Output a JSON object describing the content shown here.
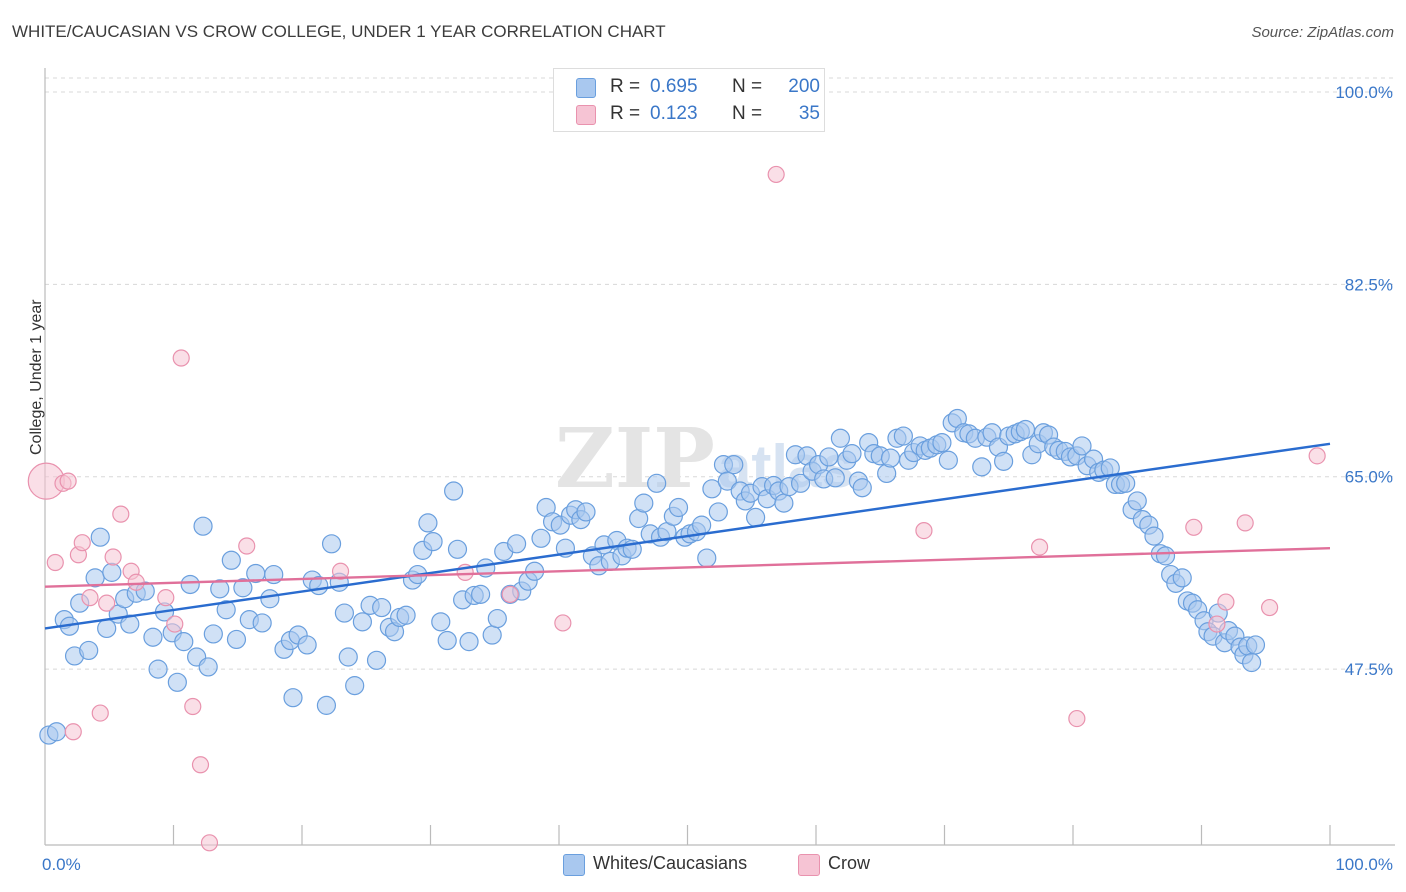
{
  "title": "WHITE/CAUCASIAN VS CROW COLLEGE, UNDER 1 YEAR CORRELATION CHART",
  "source": "Source: ZipAtlas.com",
  "colors": {
    "blue_fill": "#a9c8ef",
    "blue_stroke": "#6a9fde",
    "blue_line": "#2a6ccf",
    "pink_fill": "#f6c4d4",
    "pink_stroke": "#e992ae",
    "pink_line": "#e0709a",
    "tick_text": "#3a77c8",
    "grid": "#d8d8d8"
  },
  "legend": {
    "rows": [
      {
        "series": "Whites/Caucasians",
        "r_label": "R =",
        "r_value": "0.695",
        "n_label": "N =",
        "n_value": "200"
      },
      {
        "series": "Crow",
        "r_label": "R =",
        "r_value": "0.123",
        "n_label": "N =",
        "n_value": "35"
      }
    ]
  },
  "bottom_legend": [
    "Whites/Caucasians",
    "Crow"
  ],
  "chart_data": {
    "type": "scatter",
    "title": "WHITE/CAUCASIAN VS CROW COLLEGE, UNDER 1 YEAR CORRELATION CHART",
    "xlabel": "",
    "ylabel": "College, Under 1 year",
    "xlim": [
      0,
      100
    ],
    "ylim": [
      31.5,
      102
    ],
    "x_tick_labels": [
      {
        "value": 0,
        "label": "0.0%"
      },
      {
        "value": 100,
        "label": "100.0%"
      }
    ],
    "y_ticks": [
      {
        "value": 100,
        "label": "100.0%"
      },
      {
        "value": 82.5,
        "label": "82.5%"
      },
      {
        "value": 65,
        "label": "65.0%"
      },
      {
        "value": 47.5,
        "label": "47.5%"
      }
    ],
    "x_minor_ticks": [
      10,
      20,
      30,
      40,
      50,
      60,
      70,
      80,
      90,
      100
    ],
    "grid": true,
    "watermark": "ZIPatlas",
    "series": [
      {
        "name": "Whites/Caucasians",
        "r": 0.695,
        "n": 200,
        "trend": {
          "x": [
            0,
            100
          ],
          "y": [
            51.2,
            68.0
          ]
        },
        "points": [
          [
            0.3,
            41.5
          ],
          [
            0.9,
            41.8
          ],
          [
            1.5,
            52.0
          ],
          [
            1.9,
            51.4
          ],
          [
            2.3,
            48.7
          ],
          [
            2.7,
            53.5
          ],
          [
            3.4,
            49.2
          ],
          [
            3.9,
            55.8
          ],
          [
            4.3,
            59.5
          ],
          [
            4.8,
            51.2
          ],
          [
            5.2,
            56.3
          ],
          [
            5.7,
            52.5
          ],
          [
            6.2,
            53.9
          ],
          [
            6.6,
            51.6
          ],
          [
            7.1,
            54.4
          ],
          [
            7.8,
            54.6
          ],
          [
            8.4,
            50.4
          ],
          [
            8.8,
            47.5
          ],
          [
            9.3,
            52.7
          ],
          [
            9.9,
            50.8
          ],
          [
            10.3,
            46.3
          ],
          [
            10.8,
            50.0
          ],
          [
            11.3,
            55.2
          ],
          [
            11.8,
            48.6
          ],
          [
            12.3,
            60.5
          ],
          [
            12.7,
            47.7
          ],
          [
            13.1,
            50.7
          ],
          [
            13.6,
            54.8
          ],
          [
            14.1,
            52.9
          ],
          [
            14.5,
            57.4
          ],
          [
            14.9,
            50.2
          ],
          [
            15.4,
            54.9
          ],
          [
            15.9,
            52.0
          ],
          [
            16.4,
            56.2
          ],
          [
            16.9,
            51.7
          ],
          [
            17.5,
            53.9
          ],
          [
            17.8,
            56.1
          ],
          [
            18.6,
            49.3
          ],
          [
            19.1,
            50.1
          ],
          [
            19.7,
            50.6
          ],
          [
            19.3,
            44.9
          ],
          [
            20.4,
            49.7
          ],
          [
            20.8,
            55.6
          ],
          [
            21.3,
            55.1
          ],
          [
            21.9,
            44.2
          ],
          [
            22.3,
            58.9
          ],
          [
            22.9,
            55.4
          ],
          [
            23.3,
            52.6
          ],
          [
            23.6,
            48.6
          ],
          [
            24.1,
            46.0
          ],
          [
            24.7,
            51.8
          ],
          [
            25.3,
            53.3
          ],
          [
            25.8,
            48.3
          ],
          [
            26.2,
            53.1
          ],
          [
            26.8,
            51.3
          ],
          [
            27.2,
            50.9
          ],
          [
            27.6,
            52.2
          ],
          [
            28.1,
            52.4
          ],
          [
            28.6,
            55.6
          ],
          [
            29.0,
            56.1
          ],
          [
            29.4,
            58.3
          ],
          [
            29.8,
            60.8
          ],
          [
            30.2,
            59.1
          ],
          [
            30.8,
            51.8
          ],
          [
            31.3,
            50.1
          ],
          [
            31.8,
            63.7
          ],
          [
            32.1,
            58.4
          ],
          [
            32.5,
            53.8
          ],
          [
            33.0,
            50.0
          ],
          [
            33.4,
            54.2
          ],
          [
            33.9,
            54.3
          ],
          [
            34.3,
            56.7
          ],
          [
            34.8,
            50.6
          ],
          [
            35.2,
            52.1
          ],
          [
            35.7,
            58.2
          ],
          [
            36.2,
            54.3
          ],
          [
            36.7,
            58.9
          ],
          [
            37.1,
            54.6
          ],
          [
            37.6,
            55.5
          ],
          [
            38.1,
            56.4
          ],
          [
            38.6,
            59.4
          ],
          [
            39.0,
            62.2
          ],
          [
            39.5,
            60.9
          ],
          [
            40.1,
            60.6
          ],
          [
            40.5,
            58.5
          ],
          [
            40.9,
            61.5
          ],
          [
            41.3,
            62.0
          ],
          [
            41.7,
            61.1
          ],
          [
            42.1,
            61.8
          ],
          [
            42.6,
            57.8
          ],
          [
            43.1,
            56.9
          ],
          [
            43.5,
            58.8
          ],
          [
            44.0,
            57.3
          ],
          [
            44.5,
            59.2
          ],
          [
            44.9,
            57.8
          ],
          [
            45.3,
            58.5
          ],
          [
            45.7,
            58.4
          ],
          [
            46.2,
            61.2
          ],
          [
            46.6,
            62.6
          ],
          [
            47.1,
            59.8
          ],
          [
            47.6,
            64.4
          ],
          [
            47.9,
            59.5
          ],
          [
            48.4,
            60.0
          ],
          [
            48.9,
            61.4
          ],
          [
            49.3,
            62.2
          ],
          [
            49.8,
            59.5
          ],
          [
            50.2,
            59.8
          ],
          [
            50.7,
            60.0
          ],
          [
            51.1,
            60.6
          ],
          [
            51.5,
            57.6
          ],
          [
            51.9,
            63.9
          ],
          [
            52.4,
            61.8
          ],
          [
            52.8,
            66.1
          ],
          [
            53.1,
            64.6
          ],
          [
            53.6,
            66.1
          ],
          [
            54.1,
            63.7
          ],
          [
            54.5,
            62.8
          ],
          [
            54.9,
            63.5
          ],
          [
            55.3,
            61.3
          ],
          [
            55.8,
            64.1
          ],
          [
            56.2,
            63.0
          ],
          [
            56.7,
            64.2
          ],
          [
            57.1,
            63.7
          ],
          [
            57.5,
            62.6
          ],
          [
            57.9,
            64.1
          ],
          [
            58.4,
            67.0
          ],
          [
            58.8,
            64.4
          ],
          [
            59.3,
            66.9
          ],
          [
            59.7,
            65.5
          ],
          [
            60.2,
            66.1
          ],
          [
            60.6,
            64.8
          ],
          [
            61.0,
            66.8
          ],
          [
            61.5,
            64.9
          ],
          [
            61.9,
            68.5
          ],
          [
            62.4,
            66.5
          ],
          [
            62.8,
            67.1
          ],
          [
            63.3,
            64.6
          ],
          [
            63.6,
            64.0
          ],
          [
            64.1,
            68.1
          ],
          [
            64.5,
            67.1
          ],
          [
            65.0,
            66.9
          ],
          [
            65.5,
            65.3
          ],
          [
            65.8,
            66.7
          ],
          [
            66.3,
            68.5
          ],
          [
            66.8,
            68.7
          ],
          [
            67.2,
            66.5
          ],
          [
            67.6,
            67.2
          ],
          [
            68.1,
            67.8
          ],
          [
            68.5,
            67.4
          ],
          [
            68.9,
            67.6
          ],
          [
            69.4,
            67.9
          ],
          [
            69.8,
            68.1
          ],
          [
            70.3,
            66.5
          ],
          [
            70.6,
            69.9
          ],
          [
            71.0,
            70.3
          ],
          [
            71.5,
            69.0
          ],
          [
            71.9,
            68.9
          ],
          [
            72.4,
            68.5
          ],
          [
            72.9,
            65.9
          ],
          [
            73.3,
            68.6
          ],
          [
            73.7,
            69.0
          ],
          [
            74.2,
            67.7
          ],
          [
            74.6,
            66.4
          ],
          [
            75.0,
            68.7
          ],
          [
            75.5,
            68.9
          ],
          [
            75.9,
            69.1
          ],
          [
            76.3,
            69.3
          ],
          [
            76.8,
            67.0
          ],
          [
            77.3,
            68.0
          ],
          [
            77.7,
            69.0
          ],
          [
            78.1,
            68.8
          ],
          [
            78.5,
            67.7
          ],
          [
            78.9,
            67.4
          ],
          [
            79.4,
            67.3
          ],
          [
            79.8,
            66.8
          ],
          [
            80.3,
            66.9
          ],
          [
            80.7,
            67.8
          ],
          [
            81.1,
            66.0
          ],
          [
            81.6,
            66.6
          ],
          [
            82.0,
            65.4
          ],
          [
            82.4,
            65.6
          ],
          [
            82.9,
            65.8
          ],
          [
            83.3,
            64.3
          ],
          [
            83.7,
            64.3
          ],
          [
            84.1,
            64.4
          ],
          [
            84.6,
            62.0
          ],
          [
            85.0,
            62.8
          ],
          [
            85.4,
            61.1
          ],
          [
            85.9,
            60.6
          ],
          [
            86.3,
            59.6
          ],
          [
            86.8,
            58.0
          ],
          [
            87.2,
            57.8
          ],
          [
            87.6,
            56.1
          ],
          [
            88.0,
            55.3
          ],
          [
            88.5,
            55.8
          ],
          [
            88.9,
            53.7
          ],
          [
            89.3,
            53.5
          ],
          [
            89.7,
            52.9
          ],
          [
            90.2,
            51.9
          ],
          [
            90.5,
            50.9
          ],
          [
            90.9,
            50.5
          ],
          [
            91.3,
            52.6
          ],
          [
            91.8,
            49.9
          ],
          [
            92.1,
            51.0
          ],
          [
            92.6,
            50.5
          ],
          [
            93.0,
            49.5
          ],
          [
            93.3,
            48.8
          ],
          [
            93.6,
            49.6
          ],
          [
            93.9,
            48.1
          ],
          [
            94.2,
            49.7
          ]
        ]
      },
      {
        "name": "Crow",
        "r": 0.123,
        "n": 35,
        "trend": {
          "x": [
            0,
            100
          ],
          "y": [
            55.0,
            58.5
          ]
        },
        "points": [
          [
            0.1,
            64.6
          ],
          [
            0.8,
            57.2
          ],
          [
            1.4,
            64.4
          ],
          [
            1.8,
            64.6
          ],
          [
            2.2,
            41.8
          ],
          [
            2.6,
            57.9
          ],
          [
            2.9,
            59.0
          ],
          [
            3.5,
            54.0
          ],
          [
            4.3,
            43.5
          ],
          [
            4.8,
            53.5
          ],
          [
            5.3,
            57.7
          ],
          [
            5.9,
            61.6
          ],
          [
            6.7,
            56.4
          ],
          [
            7.1,
            55.4
          ],
          [
            9.4,
            54.0
          ],
          [
            10.1,
            51.6
          ],
          [
            10.6,
            75.8
          ],
          [
            11.5,
            44.1
          ],
          [
            12.1,
            38.8
          ],
          [
            12.8,
            31.7
          ],
          [
            15.7,
            58.7
          ],
          [
            23.0,
            56.4
          ],
          [
            32.7,
            56.3
          ],
          [
            36.2,
            54.3
          ],
          [
            40.3,
            51.7
          ],
          [
            56.9,
            92.5
          ],
          [
            68.4,
            60.1
          ],
          [
            77.4,
            58.6
          ],
          [
            80.3,
            43.0
          ],
          [
            89.4,
            60.4
          ],
          [
            91.2,
            51.6
          ],
          [
            91.9,
            53.6
          ],
          [
            93.4,
            60.8
          ],
          [
            95.3,
            53.1
          ],
          [
            99.0,
            66.9
          ]
        ]
      }
    ]
  }
}
